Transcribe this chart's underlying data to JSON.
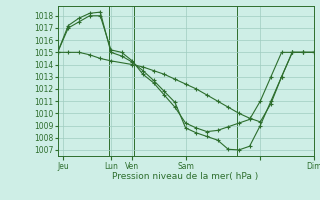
{
  "bg_color": "#ceeee6",
  "grid_color": "#a0ccc0",
  "line_color": "#2d6e2d",
  "xlabel": "Pression niveau de la mer( hPa )",
  "ylim": [
    1006.5,
    1018.8
  ],
  "yticks": [
    1007,
    1008,
    1009,
    1010,
    1011,
    1012,
    1013,
    1014,
    1015,
    1016,
    1017,
    1018
  ],
  "xlim": [
    0,
    24
  ],
  "xtick_positions": [
    0.5,
    5,
    7,
    12,
    19,
    24
  ],
  "xtick_labels": [
    "Jeu",
    "Lun",
    "Ven",
    "Sam",
    "",
    "Dim"
  ],
  "vlines": [
    4.8,
    7.2,
    16.8
  ],
  "series1_x": [
    0,
    1,
    2,
    3,
    4,
    5,
    7,
    8,
    9,
    10,
    11,
    12,
    13,
    14,
    15,
    16,
    17,
    18,
    19,
    20,
    21,
    22,
    23,
    24
  ],
  "series1_y": [
    1015.0,
    1015.0,
    1015.0,
    1014.8,
    1014.5,
    1014.3,
    1014.0,
    1013.8,
    1013.5,
    1013.2,
    1012.8,
    1012.4,
    1012.0,
    1011.5,
    1011.0,
    1010.5,
    1010.0,
    1009.6,
    1009.3,
    1010.8,
    1013.0,
    1015.0,
    1015.0,
    1015.0
  ],
  "series2_x": [
    0,
    1,
    2,
    3,
    4,
    5,
    6,
    7,
    8,
    9,
    10,
    11,
    12,
    13,
    14,
    15,
    16,
    17,
    18,
    19,
    20,
    21,
    22,
    23,
    24
  ],
  "series2_y": [
    1015.0,
    1017.2,
    1017.8,
    1018.2,
    1018.3,
    1015.0,
    1014.7,
    1014.2,
    1013.5,
    1012.7,
    1011.8,
    1010.9,
    1008.8,
    1008.4,
    1008.1,
    1007.8,
    1007.05,
    1007.0,
    1007.3,
    1009.0,
    1011.0,
    1013.0,
    1015.0,
    1015.0,
    1015.0
  ],
  "series3_x": [
    0,
    1,
    2,
    3,
    4,
    5,
    6,
    7,
    8,
    9,
    10,
    11,
    12,
    13,
    14,
    15,
    16,
    17,
    18,
    19,
    20,
    21,
    22,
    23,
    24
  ],
  "series3_y": [
    1015.0,
    1017.0,
    1017.5,
    1018.0,
    1018.0,
    1015.2,
    1015.0,
    1014.3,
    1013.2,
    1012.5,
    1011.5,
    1010.5,
    1009.2,
    1008.8,
    1008.5,
    1008.6,
    1008.9,
    1009.2,
    1009.5,
    1011.0,
    1013.0,
    1015.0,
    1015.0,
    1015.0,
    1015.0
  ]
}
